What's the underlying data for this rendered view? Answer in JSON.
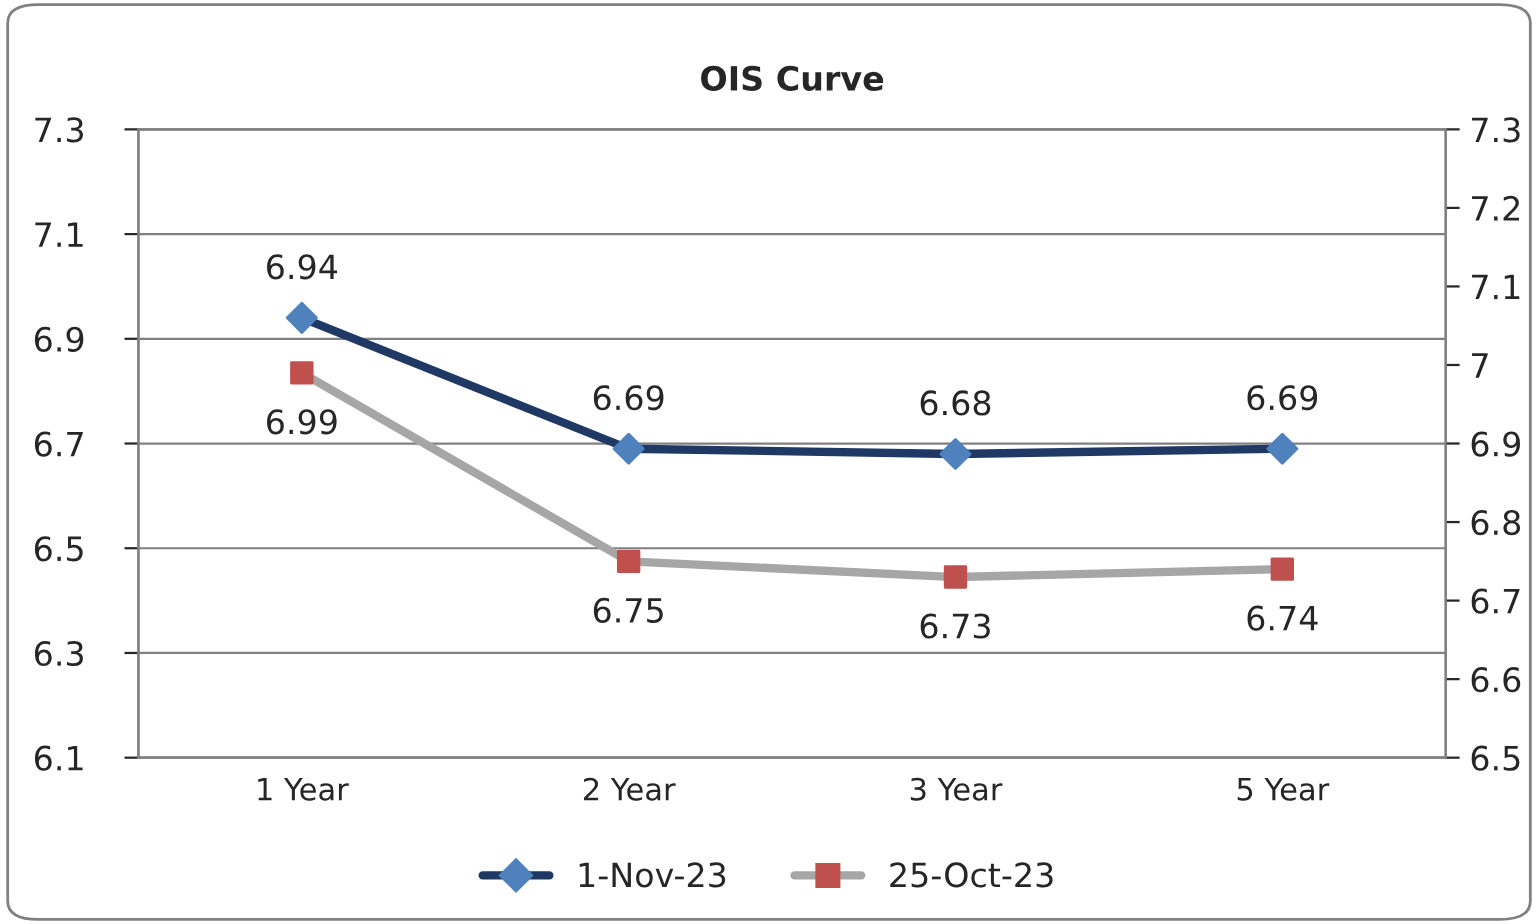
{
  "chart_data": {
    "type": "line",
    "title": "OIS Curve",
    "categories": [
      "1 Year",
      "2 Year",
      "3 Year",
      "5 Year"
    ],
    "series": [
      {
        "name": "1-Nov-23",
        "color": "#1f3864",
        "colors": [
          "#4f81bd",
          "#4f81bd",
          "#4f81bd",
          "#4f81bd"
        ],
        "values": [
          6.94,
          6.69,
          6.68,
          6.69
        ],
        "marker": "diamond"
      },
      {
        "name": "25-Oct-23",
        "color": "#a6a6a6",
        "colors": [
          "#c0504d",
          "#c0504d",
          "#c0504d",
          "#c0504d"
        ],
        "values": [
          6.99,
          6.75,
          6.73,
          6.74
        ],
        "marker": "square",
        "axis": "y2"
      }
    ],
    "ylim": [
      6.1,
      7.3
    ],
    "yticks": [
      6.1,
      6.3,
      6.5,
      6.7,
      6.9,
      7.1,
      7.3
    ],
    "y2lim": [
      6.5,
      7.3
    ],
    "y2ticks": [
      6.5,
      6.6,
      6.7,
      6.8,
      6.9,
      7,
      7.1,
      7.2,
      7.3
    ],
    "data_labels": true,
    "grid": "y",
    "legend": "bottom",
    "line_style": "solid"
  }
}
